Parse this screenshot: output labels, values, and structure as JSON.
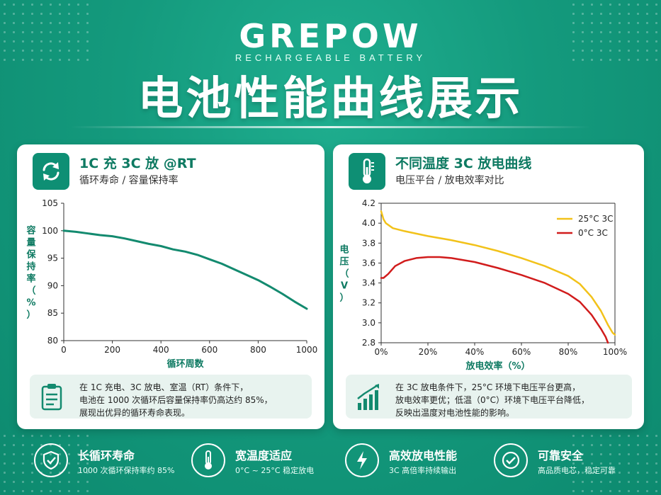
{
  "brand": {
    "name": "GREPOW",
    "tagline": "RECHARGEABLE BATTERY"
  },
  "headline": "电池性能曲线展示",
  "colors": {
    "primary": "#0e8f74",
    "dark_teal": "#0e7a62",
    "series_25c": "#f2c21a",
    "series_0c": "#d11c1c"
  },
  "cycle_card": {
    "icon": "refresh-cycle-icon",
    "title": "1C 充 3C 放 @RT",
    "subtitle": "循环寿命 / 容量保持率",
    "note_icon": "clipboard-icon",
    "note_lines": [
      "在 1C 充电、3C 放电、室温（RT）条件下，",
      "电池在 1000 次循环后容量保持率仍高达约 85%，",
      "展现出优异的循环寿命表现。"
    ]
  },
  "discharge_card": {
    "icon": "thermometer-icon",
    "title": "不同温度 3C 放电曲线",
    "subtitle": "电压平台 / 放电效率对比",
    "note_icon": "bar-chart-trend-icon",
    "note_lines": [
      "在 3C 放电条件下，25°C 环境下电压平台更高，",
      "放电效率更优；低温（0°C）环境下电压平台降低，",
      "反映出温度对电池性能的影响。"
    ]
  },
  "chart_data": [
    {
      "type": "line",
      "xlabel": "循环周数",
      "ylabel": "容量保持率（%）",
      "xlim": [
        0,
        1000
      ],
      "ylim": [
        80,
        105
      ],
      "xticks": [
        0,
        200,
        400,
        600,
        800,
        1000
      ],
      "yticks": [
        80,
        85,
        90,
        95,
        100,
        105
      ],
      "grid": false,
      "series": [
        {
          "color": "#138a6f",
          "x": [
            0,
            50,
            100,
            150,
            200,
            250,
            300,
            350,
            400,
            450,
            500,
            550,
            600,
            650,
            700,
            750,
            800,
            850,
            900,
            950,
            1000
          ],
          "y": [
            100,
            99.8,
            99.5,
            99.2,
            99.0,
            98.6,
            98.1,
            97.6,
            97.2,
            96.6,
            96.2,
            95.6,
            94.8,
            94.0,
            93.0,
            92.0,
            91.0,
            89.8,
            88.5,
            87.1,
            85.8
          ]
        }
      ]
    },
    {
      "type": "line",
      "xlabel": "放电效率（%）",
      "ylabel": "电压（V）",
      "xlim": [
        0,
        100
      ],
      "ylim": [
        2.8,
        4.2
      ],
      "xticks": [
        0,
        20,
        40,
        60,
        80,
        100
      ],
      "xtick_labels": [
        "0%",
        "20%",
        "40%",
        "60%",
        "80%",
        "100%"
      ],
      "yticks": [
        2.8,
        3.0,
        3.2,
        3.4,
        3.6,
        3.8,
        4.0,
        4.2
      ],
      "grid": false,
      "legend": "top-right",
      "series": [
        {
          "name": "25°C 3C",
          "color": "#f2c21a",
          "x": [
            0,
            1,
            2,
            5,
            10,
            20,
            30,
            40,
            50,
            60,
            70,
            80,
            85,
            90,
            94,
            97,
            99,
            100
          ],
          "y": [
            4.12,
            4.04,
            4.0,
            3.95,
            3.92,
            3.87,
            3.83,
            3.78,
            3.72,
            3.65,
            3.57,
            3.47,
            3.39,
            3.26,
            3.12,
            2.98,
            2.9,
            2.88
          ]
        },
        {
          "name": "0°C 3C",
          "color": "#d11c1c",
          "x": [
            0,
            1,
            3,
            6,
            10,
            15,
            20,
            25,
            30,
            40,
            50,
            60,
            70,
            80,
            85,
            90,
            94,
            96,
            97
          ],
          "y": [
            3.45,
            3.45,
            3.49,
            3.57,
            3.62,
            3.65,
            3.66,
            3.66,
            3.65,
            3.61,
            3.55,
            3.48,
            3.4,
            3.29,
            3.21,
            3.08,
            2.94,
            2.86,
            2.8
          ]
        }
      ]
    }
  ],
  "features": [
    {
      "icon": "shield-check-icon",
      "title": "长循环寿命",
      "subtitle": "1000 次循环保持率约 85%"
    },
    {
      "icon": "thermometer-icon",
      "title": "宽温度适应",
      "subtitle": "0°C ~ 25°C 稳定放电"
    },
    {
      "icon": "lightning-icon",
      "title": "高效放电性能",
      "subtitle": "3C 高倍率持续输出"
    },
    {
      "icon": "check-circle-icon",
      "title": "可靠安全",
      "subtitle": "高品质电芯，稳定可靠"
    }
  ]
}
